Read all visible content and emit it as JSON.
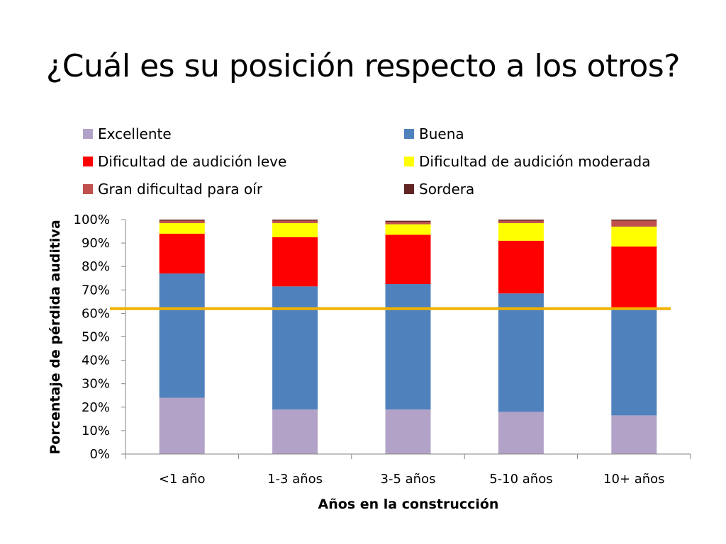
{
  "slide": {
    "title": "¿Cuál es su posición respecto a los otros?"
  },
  "chart_data": {
    "type": "bar",
    "stacked": true,
    "categories": [
      "<1 año",
      "1-3 años",
      "3-5 años",
      "5-10 años",
      "10+ años"
    ],
    "series": [
      {
        "name": "Excellente",
        "color": "#B3A2C7",
        "values": [
          24,
          19,
          19,
          18,
          16.5
        ]
      },
      {
        "name": "Buena",
        "color": "#4F81BD",
        "values": [
          53,
          52.5,
          53.5,
          50.5,
          46
        ]
      },
      {
        "name": "Dificultad de audición leve",
        "color": "#FF0000",
        "values": [
          17,
          21,
          21,
          22.5,
          26
        ]
      },
      {
        "name": " Dificultad de audición moderada",
        "color": "#FFFF00",
        "values": [
          4.5,
          6,
          4.5,
          7.5,
          8.5
        ]
      },
      {
        "name": "Gran dificultad para oír",
        "color": "#C0504D",
        "values": [
          1,
          1,
          1,
          1,
          2.5
        ]
      },
      {
        "name": "Sordera",
        "color": "#632523",
        "values": [
          0.5,
          0.5,
          0.5,
          0.5,
          0.5
        ]
      }
    ],
    "xlabel": "Años en la construcción",
    "ylabel": "Porcentaje de pérdida auditiva",
    "ylim": [
      0,
      100
    ],
    "yticks": [
      "0%",
      "10%",
      "20%",
      "30%",
      "40%",
      "50%",
      "60%",
      "70%",
      "80%",
      "90%",
      "100%"
    ],
    "reference_line": {
      "value": 62,
      "color": "#F2B200"
    },
    "legend_position": "top",
    "grid": false
  }
}
